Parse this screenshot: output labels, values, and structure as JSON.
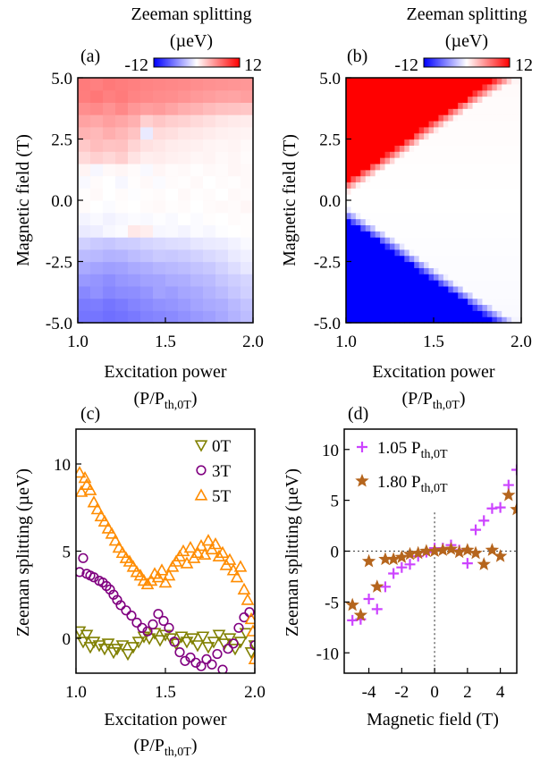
{
  "figure": {
    "panels": [
      "(a)",
      "(b)",
      "(c)",
      "(d)"
    ]
  },
  "chart_data": [
    {
      "panel": "(a)",
      "type": "heatmap",
      "title": "",
      "xlabel": "Excitation power",
      "xlabel_line2": "(P/P",
      "xlabel_sub": "th,0T",
      "xlabel_tail": ")",
      "ylabel": "Magnetic field (T)",
      "xlim": [
        1.0,
        2.0
      ],
      "ylim": [
        -5.0,
        5.0
      ],
      "xticks": [
        "1.0",
        "1.5",
        "2.0"
      ],
      "yticks": [
        "-5.0",
        "-2.5",
        "0.0",
        "2.5",
        "5.0"
      ],
      "colorbar": {
        "title": "Zeeman splitting",
        "unit": "(µeV)",
        "min_label": "-12",
        "max_label": "12",
        "min": -12,
        "max": 12,
        "low_color": "#0000ff",
        "mid_color": "#ffffff",
        "high_color": "#ff0000"
      },
      "row_values_ueV": [
        [
          -6.5,
          -6.5,
          -6.8,
          -6.6,
          -6.3,
          -5.9,
          -5.7,
          -5.5,
          -5.2,
          -4.8,
          -4.5,
          -4.1,
          -3.6,
          -3.1
        ],
        [
          -6.2,
          -6.1,
          -6.5,
          -6.2,
          -5.8,
          -5.5,
          -5.2,
          -5.0,
          -4.7,
          -4.3,
          -4.0,
          -3.8,
          -3.3,
          -2.8
        ],
        [
          -5.6,
          -5.2,
          -5.7,
          -5.4,
          -5.3,
          -5.0,
          -4.4,
          -4.6,
          -4.2,
          -4.0,
          -3.6,
          -3.2,
          -2.7,
          -2.2
        ],
        [
          -4.8,
          -5.0,
          -5.3,
          -4.9,
          -4.7,
          -4.4,
          -4.3,
          -3.9,
          -3.8,
          -3.4,
          -3.2,
          -2.7,
          -2.3,
          -2.0
        ],
        [
          -4.0,
          -4.3,
          -4.5,
          -4.4,
          -4.0,
          -3.8,
          -3.5,
          -3.3,
          -3.1,
          -2.8,
          -2.6,
          -2.1,
          -1.6,
          -1.1
        ],
        [
          -3.2,
          -3.3,
          -3.6,
          -3.5,
          -3.1,
          -2.8,
          -2.5,
          -2.6,
          -2.4,
          -2.1,
          -1.8,
          -1.5,
          -1.0,
          -0.7
        ],
        [
          -2.2,
          -2.5,
          -2.7,
          -2.4,
          -2.3,
          -2.0,
          -1.8,
          -1.6,
          -1.5,
          -1.2,
          -1.0,
          -0.9,
          -0.6,
          -0.3
        ],
        [
          -1.0,
          -0.8,
          -0.4,
          -0.2,
          1.1,
          0.8,
          -0.4,
          -0.3,
          -0.5,
          -0.2,
          -0.4,
          -0.1,
          0.0,
          0.1
        ],
        [
          -0.5,
          -0.3,
          -0.6,
          -0.4,
          -0.2,
          -0.3,
          -0.1,
          -0.3,
          0.0,
          -0.2,
          0.1,
          0.0,
          0.2,
          0.1
        ],
        [
          0.2,
          0.0,
          -0.2,
          0.1,
          0.0,
          0.2,
          0.3,
          0.1,
          0.2,
          0.0,
          0.2,
          0.3,
          0.2,
          0.4
        ],
        [
          0.1,
          0.3,
          0.0,
          0.2,
          -0.1,
          0.1,
          0.2,
          0.0,
          0.3,
          0.1,
          0.2,
          0.0,
          0.3,
          0.2
        ],
        [
          -0.3,
          0.2,
          0.0,
          -0.4,
          0.1,
          0.3,
          -0.2,
          0.2,
          0.1,
          0.3,
          0.0,
          0.2,
          0.1,
          0.3
        ],
        [
          0.5,
          -0.4,
          0.3,
          0.4,
          0.2,
          -0.3,
          0.4,
          0.2,
          0.3,
          0.1,
          0.3,
          0.2,
          0.4,
          0.3
        ],
        [
          1.8,
          2.2,
          1.9,
          2.3,
          1.3,
          0.8,
          0.9,
          0.7,
          0.6,
          0.4,
          0.5,
          0.3,
          0.4,
          0.2
        ],
        [
          2.6,
          3.1,
          2.8,
          2.9,
          2.0,
          1.4,
          1.2,
          0.9,
          0.8,
          0.7,
          0.5,
          0.4,
          0.5,
          0.3
        ],
        [
          3.6,
          3.3,
          3.8,
          3.4,
          2.8,
          -1.0,
          1.7,
          1.5,
          1.2,
          1.1,
          0.9,
          0.7,
          0.6,
          0.5
        ],
        [
          4.4,
          4.1,
          4.5,
          4.2,
          3.7,
          2.2,
          2.7,
          2.3,
          2.1,
          1.8,
          1.5,
          1.2,
          1.0,
          0.9
        ],
        [
          5.3,
          5.5,
          5.1,
          5.6,
          4.9,
          4.5,
          4.7,
          4.3,
          3.8,
          3.6,
          3.2,
          2.9,
          2.8,
          2.7
        ],
        [
          6.1,
          6.4,
          6.0,
          6.2,
          5.8,
          5.6,
          5.4,
          5.3,
          5.1,
          4.8,
          4.6,
          4.4,
          4.3,
          4.5
        ],
        [
          6.2,
          6.0,
          6.3,
          6.1,
          6.0,
          5.8,
          5.7,
          5.6,
          5.5,
          5.3,
          5.2,
          5.1,
          5.0,
          4.9
        ]
      ]
    },
    {
      "panel": "(b)",
      "type": "heatmap",
      "title": "",
      "xlabel": "Excitation power",
      "xlabel_line2": "(P/P",
      "xlabel_sub": "th,0T",
      "xlabel_tail": ")",
      "ylabel": "Magnetic field (T)",
      "xlim": [
        1.0,
        2.0
      ],
      "ylim": [
        -5.0,
        5.0
      ],
      "xticks": [
        "1.0",
        "1.5",
        "2.0"
      ],
      "yticks": [
        "-5.0",
        "-2.5",
        "0.0",
        "2.5",
        "5.0"
      ],
      "colorbar": {
        "title": "Zeeman splitting",
        "unit": "(µeV)",
        "min_label": "-12",
        "max_label": "12",
        "min": -12,
        "max": 12,
        "low_color": "#0000ff",
        "mid_color": "#ffffff",
        "high_color": "#ff0000"
      },
      "boundary": {
        "description_free_params": true,
        "field_threshold_at_x": [
          [
            1.0,
            0.4
          ],
          [
            1.25,
            1.6
          ],
          [
            1.5,
            2.9
          ],
          [
            1.75,
            4.1
          ],
          [
            1.95,
            5.0
          ]
        ],
        "saturation_value": 12
      }
    },
    {
      "panel": "(c)",
      "type": "scatter",
      "title": "",
      "xlabel": "Excitation power",
      "xlabel_line2": "(P/P",
      "xlabel_sub": "th,0T",
      "xlabel_tail": ")",
      "ylabel": "Zeeman splitting (µeV)",
      "xlim": [
        1.0,
        2.0
      ],
      "ylim": [
        -2.0,
        12.0
      ],
      "xticks": [
        "1.0",
        "1.5",
        "2.0"
      ],
      "yticks": [
        "0",
        "5",
        "10"
      ],
      "legend_position": "top-right",
      "series": [
        {
          "name": "0T",
          "marker": "triangle-down",
          "color": "#808000",
          "points": [
            [
              1.02,
              0.4
            ],
            [
              1.04,
              -0.2
            ],
            [
              1.06,
              0.2
            ],
            [
              1.08,
              -0.5
            ],
            [
              1.1,
              -0.2
            ],
            [
              1.13,
              -0.4
            ],
            [
              1.16,
              -0.6
            ],
            [
              1.18,
              -0.3
            ],
            [
              1.21,
              -0.8
            ],
            [
              1.23,
              -0.6
            ],
            [
              1.26,
              -0.4
            ],
            [
              1.29,
              -0.9
            ],
            [
              1.32,
              -0.5
            ],
            [
              1.35,
              -0.2
            ],
            [
              1.38,
              0.1
            ],
            [
              1.41,
              0.0
            ],
            [
              1.44,
              0.3
            ],
            [
              1.47,
              -0.1
            ],
            [
              1.5,
              0.2
            ],
            [
              1.53,
              0.0
            ],
            [
              1.56,
              -0.3
            ],
            [
              1.59,
              0.1
            ],
            [
              1.62,
              -0.2
            ],
            [
              1.65,
              0.0
            ],
            [
              1.68,
              -0.4
            ],
            [
              1.71,
              0.1
            ],
            [
              1.74,
              -0.5
            ],
            [
              1.77,
              -0.2
            ],
            [
              1.8,
              0.2
            ],
            [
              1.83,
              -0.3
            ],
            [
              1.86,
              0.0
            ],
            [
              1.89,
              -0.6
            ],
            [
              1.92,
              -0.2
            ],
            [
              1.95,
              0.3
            ],
            [
              1.98,
              -0.8
            ],
            [
              2.0,
              -0.4
            ]
          ]
        },
        {
          "name": "3T",
          "marker": "circle",
          "color": "#800080",
          "points": [
            [
              1.02,
              3.8
            ],
            [
              1.04,
              4.6
            ],
            [
              1.06,
              3.7
            ],
            [
              1.08,
              3.6
            ],
            [
              1.1,
              3.5
            ],
            [
              1.13,
              3.3
            ],
            [
              1.15,
              3.2
            ],
            [
              1.17,
              3.0
            ],
            [
              1.19,
              2.8
            ],
            [
              1.21,
              2.5
            ],
            [
              1.23,
              2.2
            ],
            [
              1.25,
              1.9
            ],
            [
              1.28,
              1.6
            ],
            [
              1.31,
              1.3
            ],
            [
              1.34,
              0.9
            ],
            [
              1.37,
              0.6
            ],
            [
              1.4,
              0.4
            ],
            [
              1.43,
              0.8
            ],
            [
              1.46,
              1.4
            ],
            [
              1.49,
              1.0
            ],
            [
              1.52,
              0.6
            ],
            [
              1.55,
              -0.2
            ],
            [
              1.58,
              -0.8
            ],
            [
              1.61,
              -1.3
            ],
            [
              1.64,
              -1.1
            ],
            [
              1.67,
              -1.4
            ],
            [
              1.7,
              -1.6
            ],
            [
              1.73,
              -1.2
            ],
            [
              1.76,
              -1.5
            ],
            [
              1.79,
              -0.9
            ],
            [
              1.82,
              -1.8
            ],
            [
              1.85,
              -0.6
            ],
            [
              1.88,
              -0.3
            ],
            [
              1.91,
              0.6
            ],
            [
              1.94,
              1.2
            ],
            [
              1.97,
              1.5
            ],
            [
              2.0,
              -0.4
            ]
          ]
        },
        {
          "name": "5T",
          "marker": "triangle-up",
          "color": "#ff8c00",
          "points": [
            [
              1.02,
              9.5
            ],
            [
              1.03,
              8.4
            ],
            [
              1.05,
              9.2
            ],
            [
              1.06,
              8.8
            ],
            [
              1.08,
              8.5
            ],
            [
              1.1,
              7.8
            ],
            [
              1.12,
              7.4
            ],
            [
              1.14,
              7.0
            ],
            [
              1.16,
              6.7
            ],
            [
              1.18,
              6.3
            ],
            [
              1.2,
              6.0
            ],
            [
              1.22,
              5.6
            ],
            [
              1.24,
              5.2
            ],
            [
              1.26,
              4.9
            ],
            [
              1.28,
              4.6
            ],
            [
              1.3,
              4.4
            ],
            [
              1.32,
              4.1
            ],
            [
              1.34,
              3.8
            ],
            [
              1.36,
              3.6
            ],
            [
              1.38,
              3.3
            ],
            [
              1.4,
              3.1
            ],
            [
              1.42,
              3.3
            ],
            [
              1.44,
              3.7
            ],
            [
              1.46,
              3.5
            ],
            [
              1.48,
              3.9
            ],
            [
              1.5,
              3.2
            ],
            [
              1.52,
              3.6
            ],
            [
              1.54,
              4.1
            ],
            [
              1.56,
              4.4
            ],
            [
              1.58,
              4.7
            ],
            [
              1.6,
              5.0
            ],
            [
              1.62,
              4.3
            ],
            [
              1.64,
              5.2
            ],
            [
              1.66,
              4.6
            ],
            [
              1.68,
              4.9
            ],
            [
              1.7,
              5.3
            ],
            [
              1.72,
              4.8
            ],
            [
              1.74,
              5.6
            ],
            [
              1.76,
              5.1
            ],
            [
              1.78,
              5.4
            ],
            [
              1.8,
              4.7
            ],
            [
              1.82,
              4.9
            ],
            [
              1.84,
              4.2
            ],
            [
              1.86,
              4.5
            ],
            [
              1.88,
              3.9
            ],
            [
              1.9,
              3.5
            ],
            [
              1.92,
              4.1
            ],
            [
              1.94,
              2.8
            ],
            [
              1.96,
              2.2
            ],
            [
              1.98,
              1.1
            ],
            [
              1.99,
              0.4
            ],
            [
              2.0,
              -1.2
            ]
          ]
        }
      ]
    },
    {
      "panel": "(d)",
      "type": "scatter",
      "title": "",
      "xlabel": "Magnetic field (T)",
      "ylabel": "Zeeman splitting (µeV)",
      "xlim": [
        -5.5,
        5.0
      ],
      "ylim": [
        -12.0,
        12.0
      ],
      "xticks": [
        "-4",
        "-2",
        "0",
        "2",
        "4"
      ],
      "yticks": [
        "-10",
        "-5",
        "0",
        "5",
        "10"
      ],
      "legend_position": "top-left",
      "series": [
        {
          "name": "1.05 P",
          "name_sub": "th,0T",
          "marker": "plus",
          "color": "#cc44ff",
          "points": [
            [
              -5.0,
              -6.8
            ],
            [
              -4.5,
              -6.7
            ],
            [
              -4.0,
              -4.7
            ],
            [
              -3.5,
              -5.7
            ],
            [
              -3.0,
              -3.5
            ],
            [
              -2.5,
              -2.2
            ],
            [
              -2.0,
              -1.6
            ],
            [
              -1.5,
              -1.3
            ],
            [
              -1.0,
              -0.5
            ],
            [
              -0.5,
              -0.1
            ],
            [
              0.0,
              0.3
            ],
            [
              0.5,
              0.3
            ],
            [
              1.0,
              0.6
            ],
            [
              1.5,
              0.1
            ],
            [
              2.0,
              -1.2
            ],
            [
              2.5,
              2.1
            ],
            [
              3.0,
              3.0
            ],
            [
              3.5,
              4.2
            ],
            [
              4.0,
              4.3
            ],
            [
              4.5,
              6.5
            ],
            [
              5.0,
              8.0
            ]
          ]
        },
        {
          "name": "1.80 P",
          "name_sub": "th,0T",
          "marker": "star",
          "color": "#b5651d",
          "points": [
            [
              -5.0,
              -5.3
            ],
            [
              -4.5,
              -6.3
            ],
            [
              -4.0,
              -1.0
            ],
            [
              -3.5,
              -3.5
            ],
            [
              -3.0,
              -0.8
            ],
            [
              -2.5,
              -0.8
            ],
            [
              -2.0,
              -0.6
            ],
            [
              -1.5,
              -0.3
            ],
            [
              -1.0,
              -0.2
            ],
            [
              -0.5,
              0.0
            ],
            [
              0.0,
              0.0
            ],
            [
              0.5,
              0.1
            ],
            [
              1.0,
              0.2
            ],
            [
              1.5,
              -0.1
            ],
            [
              2.0,
              0.1
            ],
            [
              2.5,
              -0.2
            ],
            [
              3.0,
              -1.3
            ],
            [
              3.5,
              0.1
            ],
            [
              4.0,
              -0.5
            ],
            [
              4.5,
              5.5
            ],
            [
              5.0,
              4.1
            ]
          ]
        }
      ]
    }
  ]
}
